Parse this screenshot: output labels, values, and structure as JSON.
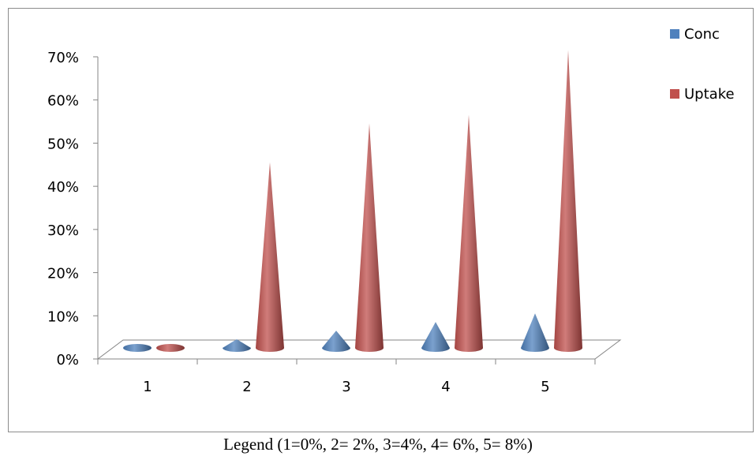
{
  "chart_data": {
    "type": "bar",
    "subtype": "3d-cone",
    "categories": [
      "1",
      "2",
      "3",
      "4",
      "5"
    ],
    "series": [
      {
        "name": "Conc",
        "values": [
          0,
          2,
          4,
          6,
          8
        ]
      },
      {
        "name": "Uptake",
        "values": [
          0,
          43,
          52,
          54,
          69
        ]
      }
    ],
    "y_ticks": [
      "0%",
      "10%",
      "20%",
      "30%",
      "40%",
      "50%",
      "60%",
      "70%"
    ],
    "ylim": [
      0,
      70
    ],
    "y_unit": "%",
    "grid": false,
    "legend_position": "top-right"
  },
  "colors": {
    "Conc": "#4f81bd",
    "Uptake": "#c0504d"
  },
  "caption": "Legend (1=0%, 2= 2%, 3=4%, 4= 6%, 5= 8%)"
}
